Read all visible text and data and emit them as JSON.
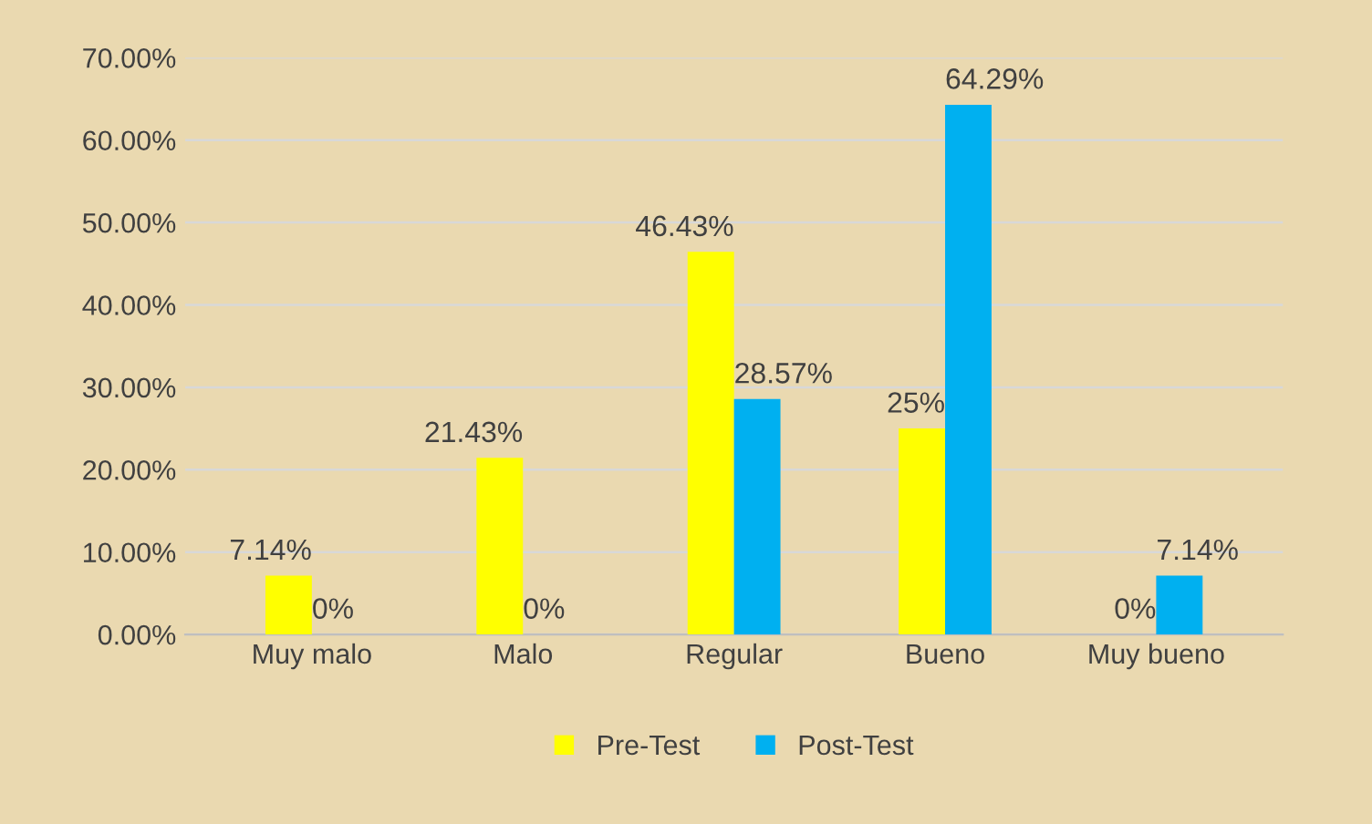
{
  "chart_data": {
    "type": "bar",
    "categories": [
      "Muy malo",
      "Malo",
      "Regular",
      "Bueno",
      "Muy bueno"
    ],
    "series": [
      {
        "name": "Pre-Test",
        "color": "#ffff00",
        "values": [
          7.14,
          21.43,
          46.43,
          25,
          0
        ],
        "value_labels": [
          "7.14%",
          "21.43%",
          "46.43%",
          "25%",
          "0%"
        ]
      },
      {
        "name": "Post-Test",
        "color": "#00b0f0",
        "values": [
          0,
          0,
          28.57,
          64.29,
          7.14
        ],
        "value_labels": [
          "0%",
          "0%",
          "28.57%",
          "64.29%",
          "7.14%"
        ]
      }
    ],
    "ylim": [
      0,
      70
    ],
    "yticks": [
      {
        "value": 0,
        "label": "0.00%"
      },
      {
        "value": 10,
        "label": "10.00%"
      },
      {
        "value": 20,
        "label": "20.00%"
      },
      {
        "value": 30,
        "label": "30.00%"
      },
      {
        "value": 40,
        "label": "40.00%"
      },
      {
        "value": 50,
        "label": "50.00%"
      },
      {
        "value": 60,
        "label": "60.00%"
      },
      {
        "value": 70,
        "label": "70.00%"
      }
    ],
    "grid": "y",
    "legend": "bottom"
  }
}
